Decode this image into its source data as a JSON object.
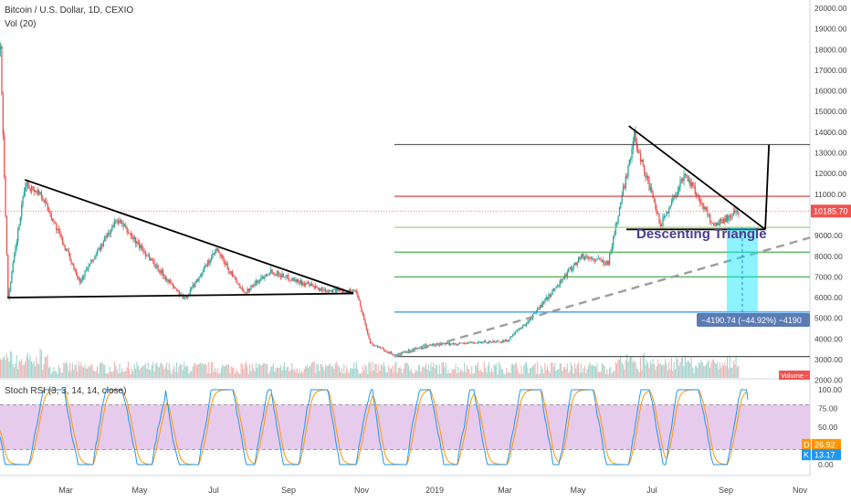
{
  "header": {
    "symbol": "Bitcoin / U.S. Dollar, 1D, CEXIO",
    "volume_indicator": "Vol (20)",
    "stoch_indicator": "Stoch RSI (3, 3, 14, 14, close)"
  },
  "price_axis": {
    "ticks": [
      "20000.00",
      "19000.00",
      "18000.00",
      "17000.00",
      "16000.00",
      "15000.00",
      "14000.00",
      "13000.00",
      "12000.00",
      "11000.00",
      "9000.00",
      "8000.00",
      "7000.00",
      "6000.00",
      "5000.00",
      "4000.00",
      "3000.00",
      "2000.00"
    ],
    "current_price": "10185.70",
    "volume_label": "Volume - 85"
  },
  "time_axis": {
    "labels": [
      "Mar",
      "May",
      "Jul",
      "Sep",
      "Nov",
      "2019",
      "Mar",
      "May",
      "Jul",
      "Sep",
      "Nov"
    ]
  },
  "stoch_axis": {
    "ticks": [
      "100.00",
      "75.00",
      "50.00",
      "25.00",
      "0.00"
    ],
    "d_label": "D",
    "d_value": "26.92",
    "k_label": "K",
    "k_value": "13.17"
  },
  "annotations": {
    "pattern_label": "Descenting Triangle",
    "measure_label": "−4190.74 (−44.92%) −4190"
  },
  "colors": {
    "bull": "#26a69a",
    "bear": "#ef5350",
    "stoch_k": "#2196f3",
    "stoch_d": "#ff9800",
    "stoch_band": "#e1bee7",
    "text_label": "#4a3d8f",
    "current_price_bg": "#ef5350",
    "measure_box": "#00e5ff",
    "measure_label_bg": "#5b7bb5"
  },
  "chart_data": {
    "type": "candlestick",
    "title": "Bitcoin / U.S. Dollar, 1D, CEXIO",
    "ylim": [
      2000,
      20000
    ],
    "x_range": [
      "2018-01-31",
      "2019-11-15"
    ],
    "price_path": [
      {
        "x": "2018-01-31",
        "y": 18000
      },
      {
        "x": "2018-02-06",
        "y": 6000
      },
      {
        "x": "2018-02-20",
        "y": 11500
      },
      {
        "x": "2018-03-05",
        "y": 11000
      },
      {
        "x": "2018-04-05",
        "y": 6800
      },
      {
        "x": "2018-05-05",
        "y": 9800
      },
      {
        "x": "2018-06-28",
        "y": 5900
      },
      {
        "x": "2018-07-24",
        "y": 8300
      },
      {
        "x": "2018-08-15",
        "y": 6200
      },
      {
        "x": "2018-09-05",
        "y": 7300
      },
      {
        "x": "2018-10-15",
        "y": 6400
      },
      {
        "x": "2018-11-14",
        "y": 6300
      },
      {
        "x": "2018-11-25",
        "y": 3800
      },
      {
        "x": "2018-12-15",
        "y": 3200
      },
      {
        "x": "2019-01-10",
        "y": 3700
      },
      {
        "x": "2019-03-15",
        "y": 3900
      },
      {
        "x": "2019-04-02",
        "y": 4900
      },
      {
        "x": "2019-05-14",
        "y": 8000
      },
      {
        "x": "2019-06-05",
        "y": 7700
      },
      {
        "x": "2019-06-26",
        "y": 13800
      },
      {
        "x": "2019-07-17",
        "y": 9500
      },
      {
        "x": "2019-08-06",
        "y": 12000
      },
      {
        "x": "2019-08-29",
        "y": 9500
      },
      {
        "x": "2019-09-18",
        "y": 10185.7
      }
    ],
    "horizontal_levels": [
      13400,
      10900,
      9400,
      8200,
      7000,
      5300,
      3150
    ],
    "last_price": 10185.7,
    "stoch_rsi": {
      "k_last": 13.17,
      "d_last": 26.92,
      "bands": [
        80,
        20
      ]
    }
  }
}
